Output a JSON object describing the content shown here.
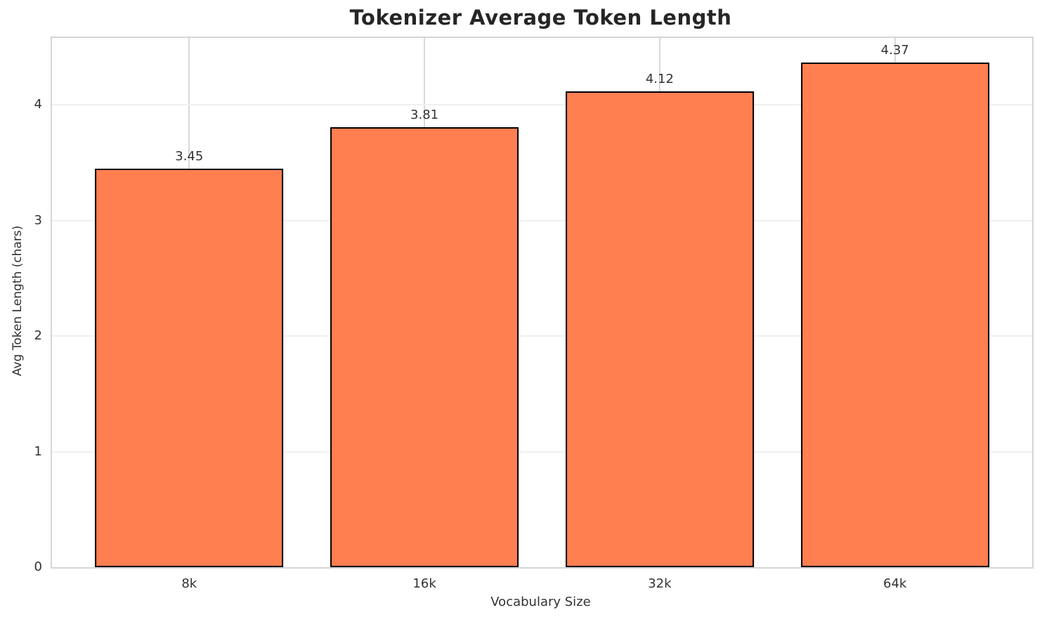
{
  "chart_data": {
    "type": "bar",
    "title": "Tokenizer Average Token Length",
    "categories": [
      "8k",
      "16k",
      "32k",
      "64k"
    ],
    "values": [
      3.45,
      3.81,
      4.12,
      4.37
    ],
    "bar_labels": [
      "3.45",
      "3.81",
      "4.12",
      "4.37"
    ],
    "xlabel": "Vocabulary Size",
    "ylabel": "Avg Token Length (chars)",
    "yticks": [
      0,
      1,
      2,
      3,
      4
    ],
    "ylim": [
      0,
      4.58
    ],
    "grid": true,
    "legend_position": "none",
    "colors": {
      "bar_fill": "#FF7F50",
      "bar_edge": "#000000",
      "grid_horizontal": "#f0f0f0",
      "grid_vertical": "#d9d9d9",
      "spine": "#d5d5d5",
      "tick_text": "#333333",
      "title_text": "#262626"
    }
  }
}
